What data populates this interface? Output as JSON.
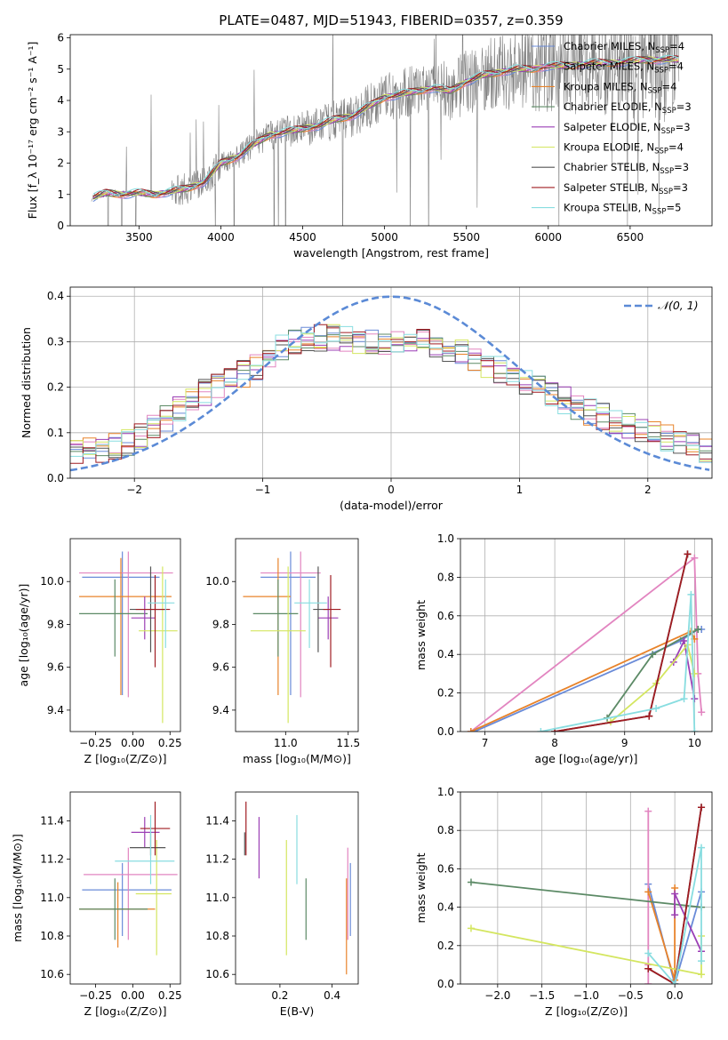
{
  "figure": {
    "title": "PLATE=0487, MJD=51943, FIBERID=0357, z=0.359",
    "legend_mass_weight": "mass weight",
    "normal_label": "𝒩(0, 1)"
  },
  "colors": {
    "Chabrier MILES": "#6a8bd8",
    "Salpeter MILES": "#e285c0",
    "Kroupa MILES": "#e8832a",
    "Chabrier ELODIE": "#5c8a66",
    "Salpeter ELODIE": "#9b3fb5",
    "Kroupa ELODIE": "#d4e660",
    "Chabrier STELIB": "#555555",
    "Salpeter STELIB": "#a01c22",
    "Kroupa STELIB": "#88dde0",
    "grid": "#b0b0b0",
    "normal": "#5b8ad6"
  },
  "chart_data": [
    {
      "type": "line",
      "id": "spectrum",
      "title": "PLATE=0487, MJD=51943, FIBERID=0357, z=0.359",
      "xlabel": "wavelength [Angstrom, rest frame]",
      "ylabel": "Flux [f_λ 10⁻¹⁷ erg cm⁻² s⁻¹ A⁻¹]",
      "xlim": [
        3080,
        7000
      ],
      "ylim": [
        0,
        6.1
      ],
      "xticks": [
        3500,
        4000,
        4500,
        5000,
        5500,
        6000,
        6500
      ],
      "yticks": [
        0,
        1,
        2,
        3,
        4,
        5,
        6
      ],
      "data_trend": {
        "x": [
          3220,
          3300,
          3400,
          3500,
          3600,
          3700,
          3800,
          3900,
          4000,
          4100,
          4200,
          4300,
          4400,
          4500,
          4600,
          4700,
          4800,
          4900,
          5000,
          5100,
          5200,
          5300,
          5400,
          5500,
          5600,
          5700,
          5800,
          5900,
          6000,
          6100,
          6200,
          6300,
          6400,
          6500,
          6600,
          6700,
          6800
        ],
        "y": [
          0.9,
          1.05,
          1.0,
          1.05,
          1.0,
          1.1,
          1.2,
          1.4,
          2.0,
          2.2,
          2.6,
          2.9,
          3.0,
          3.1,
          3.2,
          3.4,
          3.5,
          3.8,
          4.1,
          4.2,
          4.3,
          4.4,
          4.3,
          4.6,
          4.8,
          4.9,
          5.0,
          5.0,
          5.1,
          5.1,
          5.15,
          5.2,
          5.2,
          5.25,
          5.3,
          5.3,
          5.3
        ]
      },
      "series": [
        {
          "name": "Chabrier MILES",
          "n_ssp": "4"
        },
        {
          "name": "Salpeter MILES",
          "n_ssp": "4"
        },
        {
          "name": "Kroupa MILES",
          "n_ssp": "4"
        },
        {
          "name": "Chabrier ELODIE",
          "n_ssp": "3"
        },
        {
          "name": "Salpeter ELODIE",
          "n_ssp": "3"
        },
        {
          "name": "Kroupa ELODIE",
          "n_ssp": "4"
        },
        {
          "name": "Chabrier STELIB",
          "n_ssp": "3"
        },
        {
          "name": "Salpeter STELIB",
          "n_ssp": "3"
        },
        {
          "name": "Kroupa STELIB",
          "n_ssp": "5"
        }
      ],
      "legend_position": "upper-right"
    },
    {
      "type": "line",
      "id": "residuals",
      "xlabel": "(data-model)/error",
      "ylabel": "Normed distribution",
      "xlim": [
        -2.5,
        2.5
      ],
      "ylim": [
        0,
        0.42
      ],
      "xticks": [
        -2,
        -1,
        0,
        1,
        2
      ],
      "yticks": [
        0.0,
        0.1,
        0.2,
        0.3,
        0.4
      ],
      "normal": {
        "mu": 0,
        "sigma": 1,
        "label": "𝒩(0, 1)"
      },
      "histogram_bin_width": 0.1,
      "histogram_trend": {
        "x": [
          -2.5,
          -2.0,
          -1.5,
          -1.0,
          -0.8,
          -0.5,
          -0.2,
          0.0,
          0.3,
          0.6,
          1.0,
          1.5,
          2.0,
          2.5
        ],
        "y": [
          0.05,
          0.08,
          0.18,
          0.25,
          0.3,
          0.31,
          0.3,
          0.3,
          0.3,
          0.27,
          0.22,
          0.15,
          0.1,
          0.06
        ]
      },
      "legend_position": "upper-right"
    },
    {
      "type": "scatter",
      "id": "z-age",
      "xlabel": "Z [log₁₀(Z/Z⊙)]",
      "ylabel": "age  [log₁₀(age/yr)]",
      "xlim": [
        -0.42,
        0.32
      ],
      "ylim": [
        9.3,
        10.2
      ],
      "xticks": [
        -0.25,
        0.0,
        0.25
      ],
      "xticklabels": [
        "−0.25",
        "0.00",
        "0.25"
      ],
      "yticks": [
        9.4,
        9.6,
        9.8,
        10.0
      ],
      "points": [
        {
          "series": "Chabrier MILES",
          "x": -0.07,
          "xerr": [
            0.27,
            0.25
          ],
          "y": 10.02,
          "yerr": [
            0.55,
            0.12
          ]
        },
        {
          "series": "Salpeter MILES",
          "x": -0.03,
          "xerr": [
            0.33,
            0.3
          ],
          "y": 10.04,
          "yerr": [
            0.58,
            0.1
          ]
        },
        {
          "series": "Kroupa MILES",
          "x": -0.08,
          "xerr": [
            0.28,
            0.34
          ],
          "y": 9.93,
          "yerr": [
            0.46,
            0.18
          ]
        },
        {
          "series": "Chabrier ELODIE",
          "x": -0.12,
          "xerr": [
            0.24,
            0.22
          ],
          "y": 9.85,
          "yerr": [
            0.2,
            0.16
          ]
        },
        {
          "series": "Salpeter ELODIE",
          "x": 0.08,
          "xerr": [
            0.09,
            0.07
          ],
          "y": 9.83,
          "yerr": [
            0.1,
            0.1
          ]
        },
        {
          "series": "Kroupa ELODIE",
          "x": 0.2,
          "xerr": [
            0.16,
            0.1
          ],
          "y": 9.77,
          "yerr": [
            0.43,
            0.3
          ]
        },
        {
          "series": "Chabrier STELIB",
          "x": 0.12,
          "xerr": [
            0.14,
            0.1
          ],
          "y": 9.87,
          "yerr": [
            0.2,
            0.2
          ]
        },
        {
          "series": "Salpeter STELIB",
          "x": 0.15,
          "xerr": [
            0.13,
            0.1
          ],
          "y": 9.87,
          "yerr": [
            0.27,
            0.16
          ]
        },
        {
          "series": "Kroupa STELIB",
          "x": 0.22,
          "xerr": [
            0.12,
            0.06
          ],
          "y": 9.9,
          "yerr": [
            0.21,
            0.11
          ]
        }
      ]
    },
    {
      "type": "scatter",
      "id": "mass-age",
      "xlabel": "mass [log₁₀(M/M⊙)]",
      "xlim": [
        10.6,
        11.58
      ],
      "ylim": [
        9.3,
        10.2
      ],
      "xticks": [
        11.0,
        11.5
      ],
      "yticks": [
        9.4,
        9.6,
        9.8,
        10.0
      ],
      "points": [
        {
          "series": "Chabrier MILES",
          "x": 11.04,
          "xerr": [
            0.24,
            0.2
          ],
          "y": 10.02,
          "yerr": [
            0.55,
            0.12
          ]
        },
        {
          "series": "Salpeter MILES",
          "x": 11.12,
          "xerr": [
            0.32,
            0.16
          ],
          "y": 10.04,
          "yerr": [
            0.58,
            0.1
          ]
        },
        {
          "series": "Kroupa MILES",
          "x": 10.94,
          "xerr": [
            0.28,
            0.1
          ],
          "y": 9.93,
          "yerr": [
            0.46,
            0.18
          ]
        },
        {
          "series": "Chabrier ELODIE",
          "x": 10.94,
          "xerr": [
            0.2,
            0.16
          ],
          "y": 9.85,
          "yerr": [
            0.2,
            0.16
          ]
        },
        {
          "series": "Salpeter ELODIE",
          "x": 11.34,
          "xerr": [
            0.08,
            0.08
          ],
          "y": 9.83,
          "yerr": [
            0.1,
            0.1
          ]
        },
        {
          "series": "Kroupa ELODIE",
          "x": 11.02,
          "xerr": [
            0.3,
            0.14
          ],
          "y": 9.77,
          "yerr": [
            0.43,
            0.3
          ]
        },
        {
          "series": "Chabrier STELIB",
          "x": 11.26,
          "xerr": [
            0.04,
            0.08
          ],
          "y": 9.87,
          "yerr": [
            0.2,
            0.2
          ]
        },
        {
          "series": "Salpeter STELIB",
          "x": 11.36,
          "xerr": [
            0.06,
            0.08
          ],
          "y": 9.87,
          "yerr": [
            0.27,
            0.16
          ]
        },
        {
          "series": "Kroupa STELIB",
          "x": 11.19,
          "xerr": [
            0.12,
            0.14
          ],
          "y": 9.9,
          "yerr": [
            0.21,
            0.11
          ]
        }
      ]
    },
    {
      "type": "line",
      "id": "age-weight",
      "xlabel": "age  [log₁₀(age/yr)]",
      "ylabel": "mass weight",
      "xlim": [
        6.65,
        10.25
      ],
      "ylim": [
        0,
        1.0
      ],
      "xticks": [
        7,
        8,
        9,
        10
      ],
      "yticks": [
        0.0,
        0.2,
        0.4,
        0.6,
        0.8,
        1.0
      ],
      "series": [
        {
          "name": "Chabrier MILES",
          "x": [
            6.85,
            9.8,
            10.05,
            10.1
          ],
          "y": [
            0.0,
            0.47,
            0.53,
            0.53
          ]
        },
        {
          "name": "Salpeter MILES",
          "x": [
            6.8,
            10.0,
            10.05,
            10.1
          ],
          "y": [
            0.0,
            0.9,
            0.3,
            0.1
          ]
        },
        {
          "name": "Kroupa MILES",
          "x": [
            6.8,
            9.95,
            10.0
          ],
          "y": [
            0.0,
            0.52,
            0.48
          ]
        },
        {
          "name": "Chabrier ELODIE",
          "x": [
            8.75,
            9.4,
            10.05
          ],
          "y": [
            0.07,
            0.4,
            0.53
          ]
        },
        {
          "name": "Salpeter ELODIE",
          "x": [
            9.7,
            9.85,
            10.0
          ],
          "y": [
            0.36,
            0.47,
            0.17
          ]
        },
        {
          "name": "Kroupa ELODIE",
          "x": [
            8.8,
            9.45,
            9.9,
            10.0
          ],
          "y": [
            0.05,
            0.25,
            0.45,
            0.3
          ]
        },
        {
          "name": "Chabrier STELIB",
          "x": [
            8.0,
            9.35,
            9.9
          ],
          "y": [
            0.0,
            0.08,
            0.92
          ]
        },
        {
          "name": "Salpeter STELIB",
          "x": [
            8.0,
            9.35,
            9.9
          ],
          "y": [
            0.0,
            0.08,
            0.92
          ]
        },
        {
          "name": "Kroupa STELIB",
          "x": [
            7.8,
            9.45,
            9.85,
            9.95,
            10.0
          ],
          "y": [
            0.0,
            0.12,
            0.17,
            0.71,
            0.0
          ]
        }
      ]
    },
    {
      "type": "scatter",
      "id": "z-mass",
      "xlabel": "Z [log₁₀(Z/Z⊙)]",
      "ylabel": "mass [log₁₀(M/M⊙)]",
      "xlim": [
        -0.42,
        0.32
      ],
      "ylim": [
        10.55,
        11.55
      ],
      "xticks": [
        -0.25,
        0.0,
        0.25
      ],
      "xticklabels": [
        "−0.25",
        "0.00",
        "0.25"
      ],
      "yticks": [
        10.6,
        10.8,
        11.0,
        11.2,
        11.4
      ],
      "points": [
        {
          "series": "Chabrier MILES",
          "x": -0.07,
          "xerr": [
            0.27,
            0.33
          ],
          "y": 11.04,
          "yerr": [
            0.24,
            0.14
          ]
        },
        {
          "series": "Salpeter MILES",
          "x": -0.03,
          "xerr": [
            0.3,
            0.33
          ],
          "y": 11.12,
          "yerr": [
            0.34,
            0.14
          ]
        },
        {
          "series": "Kroupa MILES",
          "x": -0.1,
          "xerr": [
            0.26,
            0.25
          ],
          "y": 10.94,
          "yerr": [
            0.2,
            0.14
          ]
        },
        {
          "series": "Chabrier ELODIE",
          "x": -0.12,
          "xerr": [
            0.24,
            0.22
          ],
          "y": 10.94,
          "yerr": [
            0.16,
            0.16
          ]
        },
        {
          "series": "Salpeter ELODIE",
          "x": 0.08,
          "xerr": [
            0.09,
            0.1
          ],
          "y": 11.34,
          "yerr": [
            0.08,
            0.08
          ]
        },
        {
          "series": "Kroupa ELODIE",
          "x": 0.16,
          "xerr": [
            0.14,
            0.1
          ],
          "y": 11.02,
          "yerr": [
            0.32,
            0.28
          ]
        },
        {
          "series": "Chabrier STELIB",
          "x": 0.12,
          "xerr": [
            0.14,
            0.1
          ],
          "y": 11.26,
          "yerr": [
            0.04,
            0.08
          ]
        },
        {
          "series": "Salpeter STELIB",
          "x": 0.15,
          "xerr": [
            0.1,
            0.1
          ],
          "y": 11.36,
          "yerr": [
            0.14,
            0.14
          ]
        },
        {
          "series": "Kroupa STELIB",
          "x": 0.12,
          "xerr": [
            0.24,
            0.16
          ],
          "y": 11.19,
          "yerr": [
            0.12,
            0.24
          ]
        }
      ]
    },
    {
      "type": "scatter",
      "id": "ebv-mass",
      "xlabel": "E(B-V)",
      "xlim": [
        0.03,
        0.5
      ],
      "ylim": [
        10.55,
        11.55
      ],
      "xticks": [
        0.2,
        0.4
      ],
      "yticks": [
        10.6,
        10.8,
        11.0,
        11.2,
        11.4
      ],
      "points": [
        {
          "series": "Chabrier MILES",
          "x": 0.47,
          "y": 11.04,
          "yerr": [
            0.24,
            0.14
          ]
        },
        {
          "series": "Salpeter MILES",
          "x": 0.46,
          "y": 11.12,
          "yerr": [
            0.34,
            0.14
          ]
        },
        {
          "series": "Kroupa MILES",
          "x": 0.455,
          "y": 10.94,
          "yerr": [
            0.34,
            0.16
          ]
        },
        {
          "series": "Chabrier ELODIE",
          "x": 0.3,
          "y": 10.94,
          "yerr": [
            0.16,
            0.16
          ]
        },
        {
          "series": "Salpeter ELODIE",
          "x": 0.12,
          "y": 11.34,
          "yerr": [
            0.24,
            0.08
          ]
        },
        {
          "series": "Kroupa ELODIE",
          "x": 0.225,
          "y": 11.02,
          "yerr": [
            0.32,
            0.28
          ]
        },
        {
          "series": "Chabrier STELIB",
          "x": 0.065,
          "y": 11.26,
          "yerr": [
            0.04,
            0.08
          ]
        },
        {
          "series": "Salpeter STELIB",
          "x": 0.07,
          "y": 11.36,
          "yerr": [
            0.14,
            0.14
          ]
        },
        {
          "series": "Kroupa STELIB",
          "x": 0.265,
          "y": 11.19,
          "yerr": [
            0.12,
            0.24
          ]
        }
      ]
    },
    {
      "type": "line",
      "id": "z-weight",
      "xlabel": "Z [log₁₀(Z/Z⊙)]",
      "ylabel": "mass weight",
      "xlim": [
        -2.42,
        0.42
      ],
      "ylim": [
        0,
        1.0
      ],
      "xticks": [
        -2.0,
        -1.5,
        -1.0,
        -0.5,
        0.0
      ],
      "xticklabels": [
        "−2.0",
        "−1.5",
        "−1.0",
        "−0.5",
        "0.0"
      ],
      "yticks": [
        0.0,
        0.2,
        0.4,
        0.6,
        0.8,
        1.0
      ],
      "series": [
        {
          "name": "Chabrier MILES",
          "x": [
            -0.3,
            0.0,
            0.3
          ],
          "y": [
            0.52,
            0.0,
            0.48
          ]
        },
        {
          "name": "Salpeter MILES",
          "x": [
            -0.3,
            -0.3,
            -0.3
          ],
          "y": [
            0.9,
            0.1,
            0.0
          ]
        },
        {
          "name": "Kroupa MILES",
          "x": [
            -0.3,
            0.0,
            0.0
          ],
          "y": [
            0.48,
            0.02,
            0.5
          ]
        },
        {
          "name": "Chabrier ELODIE",
          "x": [
            -2.3,
            0.3
          ],
          "y": [
            0.53,
            0.4
          ]
        },
        {
          "name": "Salpeter ELODIE",
          "x": [
            0.0,
            0.0,
            0.3
          ],
          "y": [
            0.36,
            0.47,
            0.17
          ]
        },
        {
          "name": "Kroupa ELODIE",
          "x": [
            -2.3,
            0.3,
            0.3
          ],
          "y": [
            0.29,
            0.05,
            0.25
          ]
        },
        {
          "name": "Chabrier STELIB",
          "x": [
            -0.3,
            0.0,
            0.3
          ],
          "y": [
            0.08,
            0.0,
            0.92
          ]
        },
        {
          "name": "Salpeter STELIB",
          "x": [
            -0.3,
            0.0,
            0.3
          ],
          "y": [
            0.08,
            0.0,
            0.92
          ]
        },
        {
          "name": "Kroupa STELIB",
          "x": [
            -0.3,
            0.0,
            0.3,
            0.3
          ],
          "y": [
            0.16,
            0.0,
            0.71,
            0.12
          ]
        }
      ]
    }
  ]
}
